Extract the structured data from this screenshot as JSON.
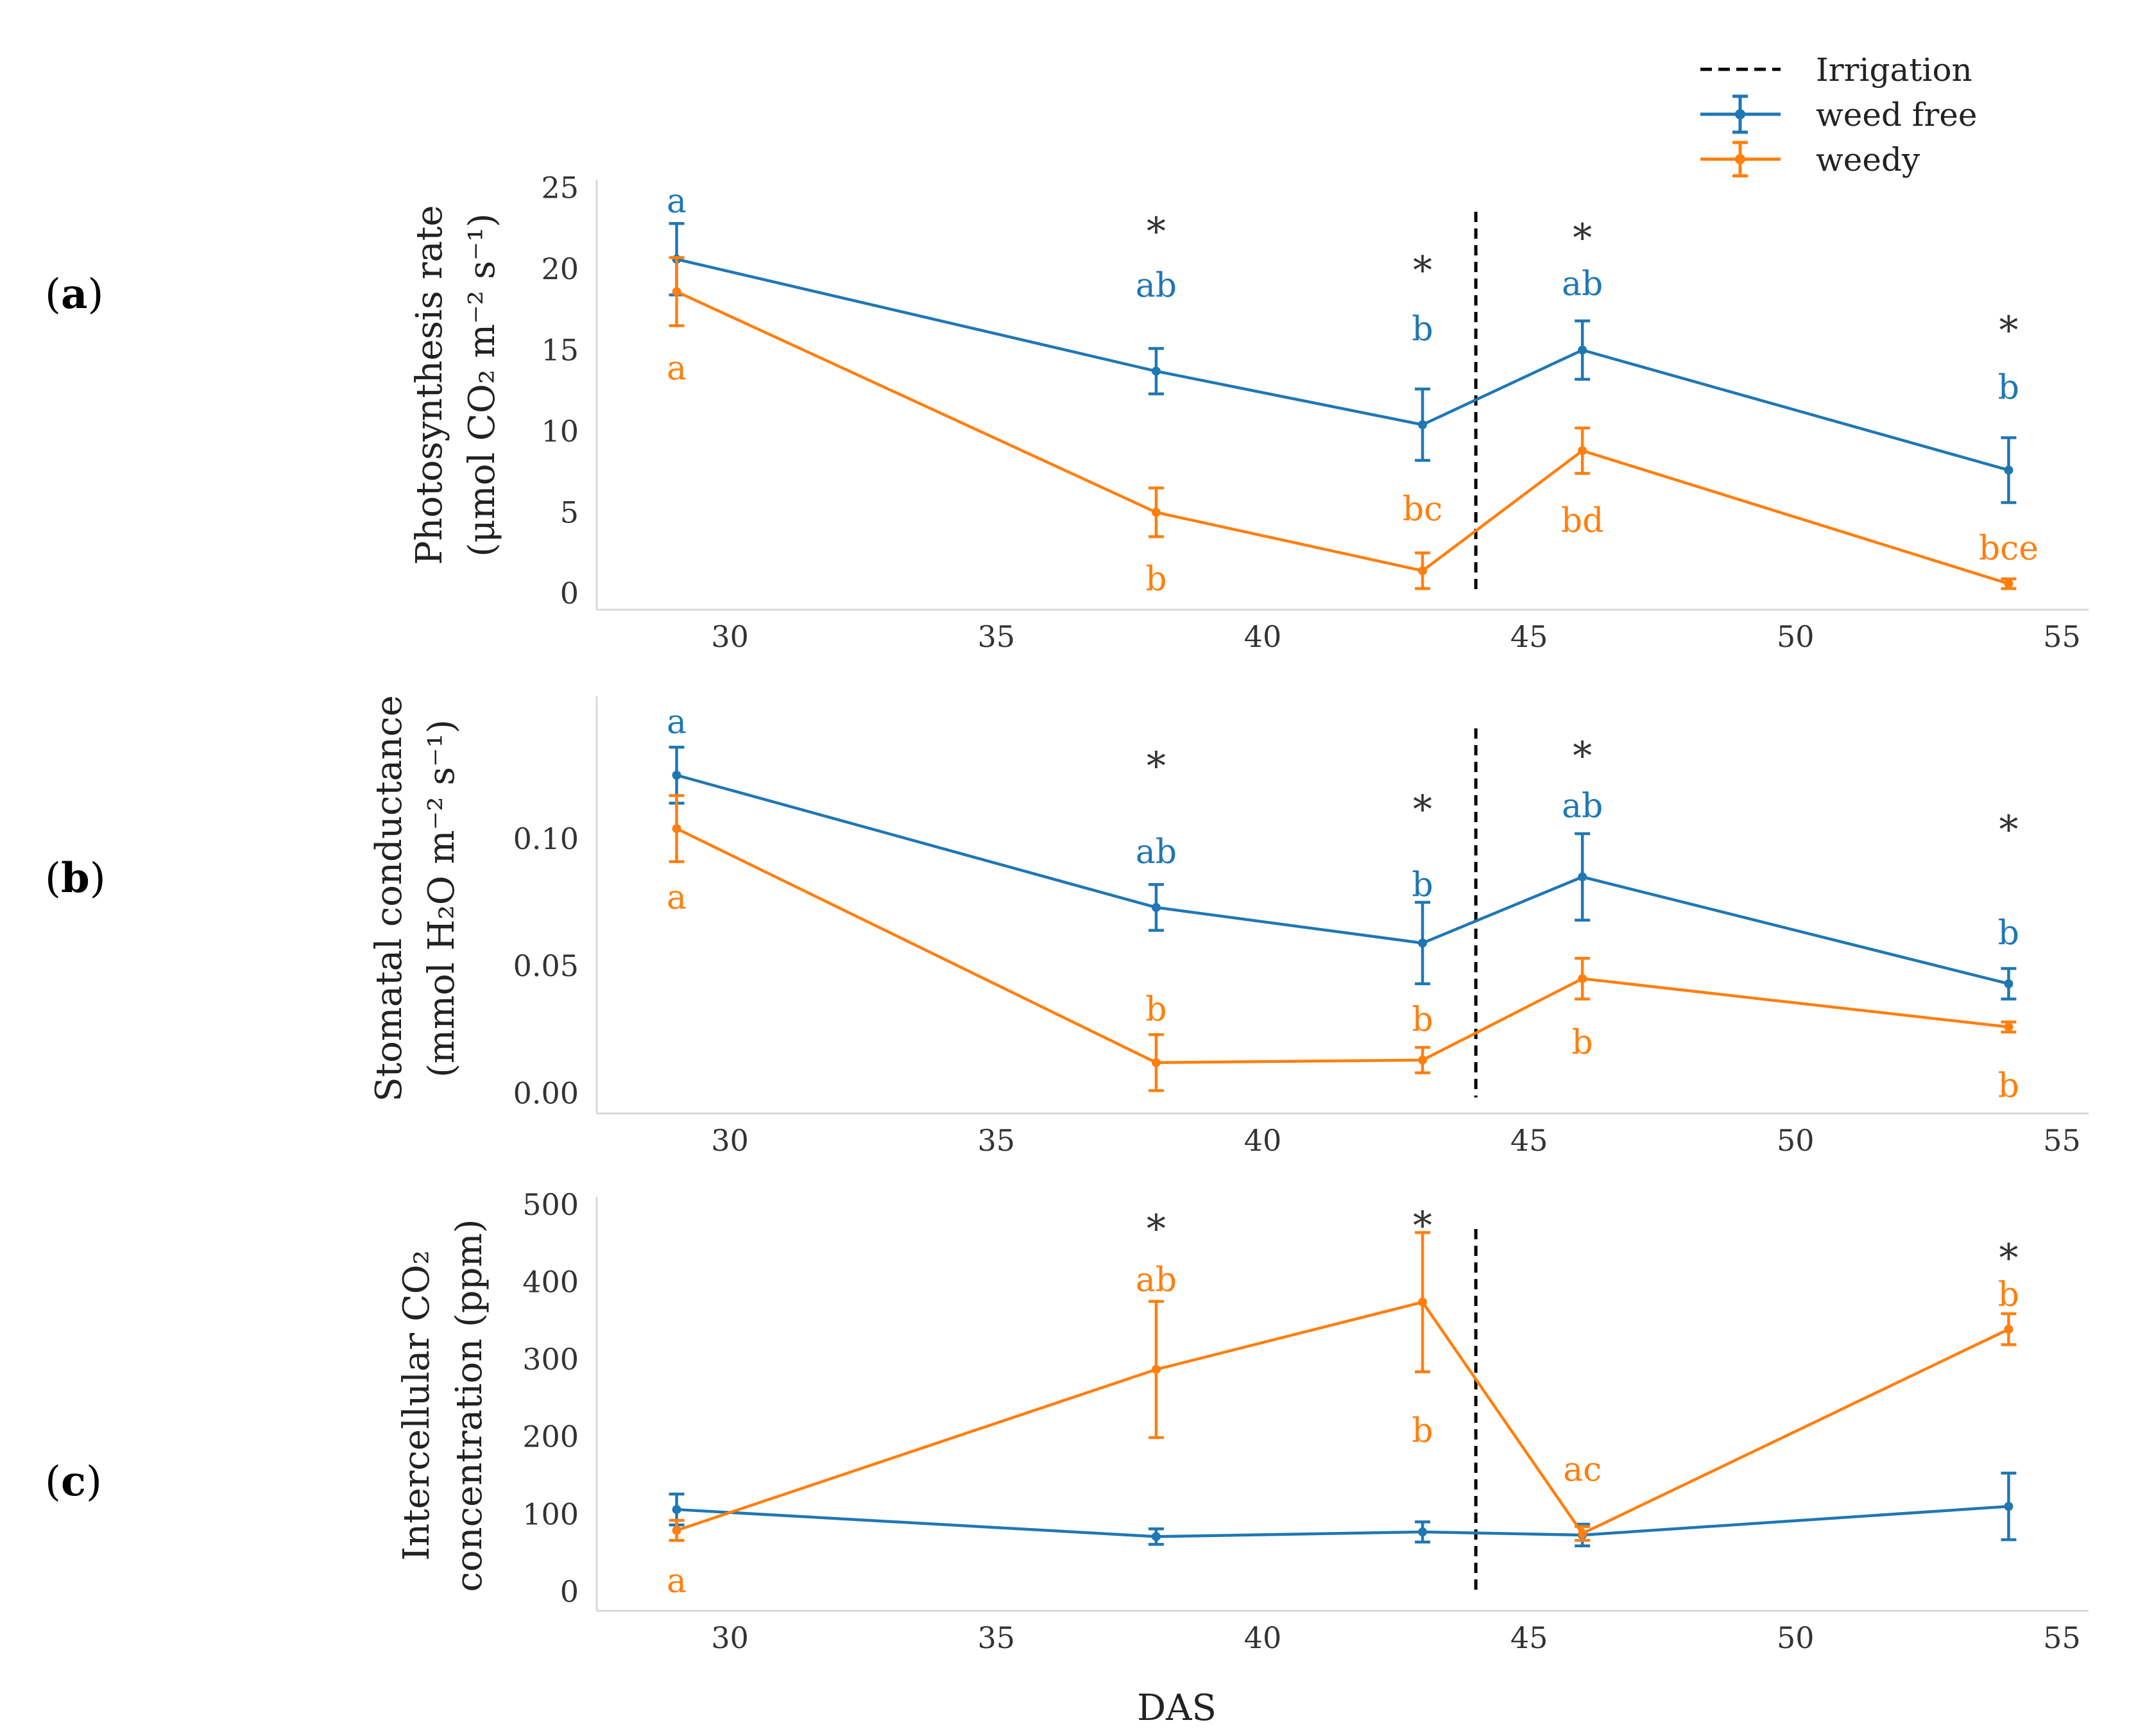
{
  "colors": {
    "weed_free": "#1f77b4",
    "weedy": "#ff7f0e",
    "star": "#333333",
    "irrigation": "#000000"
  },
  "legend": {
    "irrigation": "Irrigation",
    "weed_free": "weed free",
    "weedy": "weedy"
  },
  "xlabel": "DAS",
  "chart_data": [
    {
      "type": "line",
      "panel": "(a)",
      "panel_letter": "a",
      "ylabel_line1": "Photosynthesis rate",
      "ylabel_line2": "(μmol CO₂ m⁻² s⁻¹)",
      "xlim": [
        27.5,
        55.5
      ],
      "ylim": [
        -1,
        25.5
      ],
      "xticks": [
        30,
        35,
        40,
        45,
        50,
        55
      ],
      "yticks": [
        0,
        5,
        10,
        15,
        20,
        25
      ],
      "irrigation_x": 44,
      "series": [
        {
          "name": "weed free",
          "x": [
            29,
            38,
            43,
            46,
            54
          ],
          "values": [
            20.6,
            13.7,
            10.4,
            15.0,
            7.6
          ],
          "errors": [
            2.2,
            1.4,
            2.2,
            1.8,
            2.0
          ]
        },
        {
          "name": "weedy",
          "x": [
            29,
            38,
            43,
            46,
            54
          ],
          "values": [
            18.6,
            5.0,
            1.4,
            8.8,
            0.6
          ],
          "errors": [
            2.1,
            1.5,
            1.1,
            1.4,
            0.3
          ]
        }
      ],
      "letters": [
        {
          "text": "a",
          "series": "weed free",
          "x": 29,
          "y": 24.2
        },
        {
          "text": "ab",
          "series": "weed free",
          "x": 38,
          "y": 19.0
        },
        {
          "text": "b",
          "series": "weed free",
          "x": 43,
          "y": 16.3
        },
        {
          "text": "ab",
          "series": "weed free",
          "x": 46,
          "y": 19.1
        },
        {
          "text": "b",
          "series": "weed free",
          "x": 54,
          "y": 12.7
        },
        {
          "text": "a",
          "series": "weedy",
          "x": 29,
          "y": 13.9
        },
        {
          "text": "b",
          "series": "weedy",
          "x": 38,
          "y": 0.9
        },
        {
          "text": "bc",
          "series": "weedy",
          "x": 43,
          "y": 5.2
        },
        {
          "text": "bd",
          "series": "weedy",
          "x": 46,
          "y": 4.5
        },
        {
          "text": "bce",
          "series": "weedy",
          "x": 54,
          "y": 2.8
        }
      ],
      "stars": [
        {
          "text": "*",
          "x": 38,
          "y": 22.7
        },
        {
          "text": "*",
          "x": 43,
          "y": 20.3
        },
        {
          "text": "*",
          "x": 46,
          "y": 22.3
        },
        {
          "text": "*",
          "x": 54,
          "y": 16.6
        }
      ]
    },
    {
      "type": "line",
      "panel": "(b)",
      "panel_letter": "b",
      "ylabel_line1": "Stomatal conductance",
      "ylabel_line2": "(mmol H₂O m⁻² s⁻¹)",
      "xlim": [
        27.5,
        55.5
      ],
      "ylim": [
        -0.008,
        0.156
      ],
      "xticks": [
        30,
        35,
        40,
        45,
        50,
        55
      ],
      "yticks": [
        0.0,
        0.05,
        0.1
      ],
      "ytick_labels": [
        "0.00",
        "0.05",
        "0.10"
      ],
      "irrigation_x": 44,
      "series": [
        {
          "name": "weed free",
          "x": [
            29,
            38,
            43,
            46,
            54
          ],
          "values": [
            0.125,
            0.073,
            0.059,
            0.085,
            0.043
          ],
          "errors": [
            0.011,
            0.009,
            0.016,
            0.017,
            0.006
          ]
        },
        {
          "name": "weedy",
          "x": [
            29,
            38,
            43,
            46,
            54
          ],
          "values": [
            0.104,
            0.012,
            0.013,
            0.045,
            0.026
          ],
          "errors": [
            0.013,
            0.011,
            0.005,
            0.008,
            0.002
          ]
        }
      ],
      "letters": [
        {
          "text": "a",
          "series": "weed free",
          "x": 29,
          "y": 0.146
        },
        {
          "text": "ab",
          "series": "weed free",
          "x": 38,
          "y": 0.095
        },
        {
          "text": "b",
          "series": "weed free",
          "x": 43,
          "y": 0.082
        },
        {
          "text": "ab",
          "series": "weed free",
          "x": 46,
          "y": 0.113
        },
        {
          "text": "b",
          "series": "weed free",
          "x": 54,
          "y": 0.063
        },
        {
          "text": "a",
          "series": "weedy",
          "x": 29,
          "y": 0.077
        },
        {
          "text": "b",
          "series": "weedy",
          "x": 38,
          "y": 0.033
        },
        {
          "text": "b",
          "series": "weedy",
          "x": 43,
          "y": 0.029
        },
        {
          "text": "b",
          "series": "weedy",
          "x": 46,
          "y": 0.02
        },
        {
          "text": "b",
          "series": "weedy",
          "x": 54,
          "y": 0.003
        }
      ],
      "stars": [
        {
          "text": "*",
          "x": 38,
          "y": 0.131
        },
        {
          "text": "*",
          "x": 43,
          "y": 0.114
        },
        {
          "text": "*",
          "x": 46,
          "y": 0.135
        },
        {
          "text": "*",
          "x": 54,
          "y": 0.106
        }
      ]
    },
    {
      "type": "line",
      "panel": "(c)",
      "panel_letter": "c",
      "ylabel_line1": "Intercellular CO₂",
      "ylabel_line2": "concentration (ppm)",
      "xlim": [
        27.5,
        55.5
      ],
      "ylim": [
        -25,
        510
      ],
      "xticks": [
        30,
        35,
        40,
        45,
        50,
        55
      ],
      "yticks": [
        0,
        100,
        200,
        300,
        400,
        500
      ],
      "irrigation_x": 44,
      "series": [
        {
          "name": "weed free",
          "x": [
            29,
            38,
            43,
            46,
            54
          ],
          "values": [
            106,
            71,
            77,
            73,
            110
          ],
          "errors": [
            20,
            10,
            13,
            14,
            43
          ]
        },
        {
          "name": "weedy",
          "x": [
            29,
            38,
            43,
            46,
            54
          ],
          "values": [
            79,
            287,
            374,
            75,
            339
          ],
          "errors": [
            13,
            88,
            90,
            9,
            20
          ]
        }
      ],
      "letters": [
        {
          "text": "ab",
          "series": "weedy",
          "x": 38,
          "y": 403
        },
        {
          "text": "b",
          "series": "weedy",
          "x": 43,
          "y": 208
        },
        {
          "text": "ac",
          "series": "weedy",
          "x": 46,
          "y": 158
        },
        {
          "text": "b",
          "series": "weedy",
          "x": 54,
          "y": 384
        },
        {
          "text": "a",
          "series": "weedy",
          "x": 29,
          "y": 14
        }
      ],
      "stars": [
        {
          "text": "*",
          "x": 38,
          "y": 477
        },
        {
          "text": "*",
          "x": 43,
          "y": 481
        },
        {
          "text": "*",
          "x": 54,
          "y": 439
        }
      ]
    }
  ]
}
